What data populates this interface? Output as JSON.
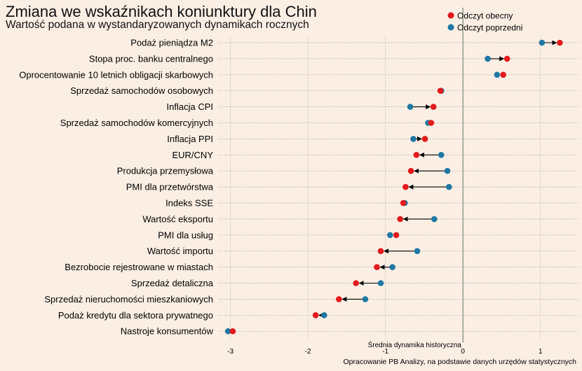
{
  "title": "Zmiana we wskaźnikach koniunktury dla Chin",
  "subtitle": "Wartość podana w wystandaryzowanych dynamikach rocznych",
  "caption": "Opracowanie  PB Analizy, na podstawie danych urzędów statystycznych",
  "colors": {
    "current": "#e31a1c",
    "previous": "#1f78a4",
    "background": "#fbeee3"
  },
  "chart_data": {
    "type": "scatter",
    "subtype": "dumbbell-arrow",
    "xlabel": "Średnia dynamika historyczna",
    "xlim": [
      -3.15,
      1.5
    ],
    "xticks": [
      -3,
      -2,
      -1,
      0,
      1
    ],
    "tick_labels": [
      "-3",
      "-2",
      "-1",
      "0",
      "1"
    ],
    "reference_line_x": 0,
    "grid": "horizontal dotted",
    "legend": {
      "placement": "top-right",
      "entries": [
        "Odczyt obecny",
        "Odczyt poprzedni"
      ]
    },
    "categories": [
      "Podaż pieniądza M2",
      "Stopa proc. banku centralnego",
      "Oprocentowanie 10 letnich obligacji skarbowych",
      "Sprzedaż samochodów osobowych",
      "Inflacja CPI",
      "Sprzedaż samochodów komercyjnych",
      "Inflacja PPI",
      "EUR/CNY",
      "Produkcja przemysłowa",
      "PMI dla przetwórstwa",
      "Indeks SSE",
      "Wartość eksportu",
      "PMI dla usług",
      "Wartość importu",
      "Bezrobocie rejestrowane w miastach",
      "Sprzedaż detaliczna",
      "Sprzedaż nieruchomości mieszkaniowych",
      "Podaż kredytu dla sektora prywatnego",
      "Nastroje konsumentów"
    ],
    "series": [
      {
        "name": "Odczyt obecny",
        "values": [
          1.25,
          0.57,
          0.52,
          -0.29,
          -0.38,
          -0.41,
          -0.49,
          -0.6,
          -0.67,
          -0.74,
          -0.77,
          -0.81,
          -0.86,
          -1.06,
          -1.11,
          -1.38,
          -1.6,
          -1.9,
          -2.97
        ]
      },
      {
        "name": "Odczyt poprzedni",
        "values": [
          1.02,
          0.32,
          0.44,
          -0.28,
          -0.68,
          -0.45,
          -0.64,
          -0.28,
          -0.2,
          -0.18,
          -0.75,
          -0.37,
          -0.94,
          -0.59,
          -0.91,
          -1.06,
          -1.26,
          -1.79,
          -3.03
        ]
      }
    ]
  }
}
